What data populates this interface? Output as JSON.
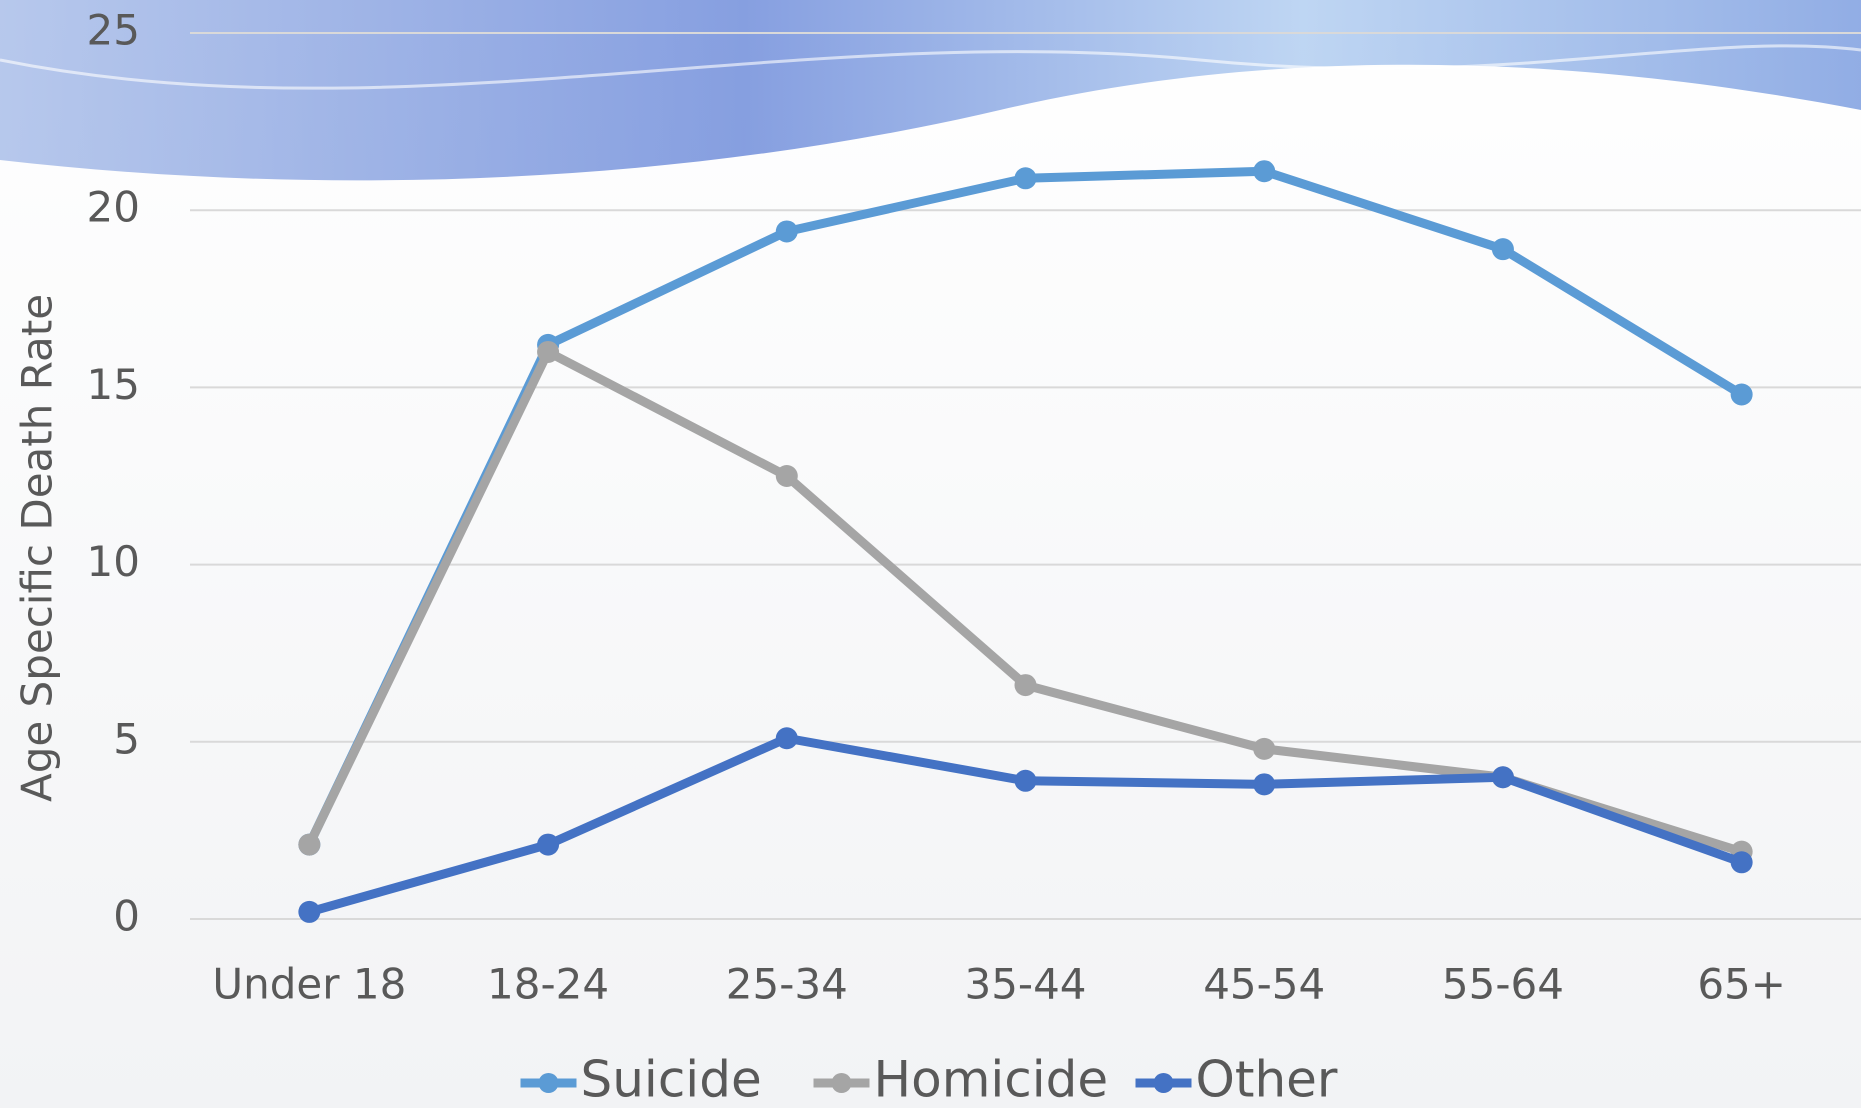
{
  "chart_data": {
    "type": "line",
    "y_label": "Age Specific Death Rate",
    "categories": [
      "Under 18",
      "18-24",
      "25-34",
      "35-44",
      "45-54",
      "55-64",
      "65+"
    ],
    "series": [
      {
        "name": "Suicide",
        "color": "#5b9bd5",
        "values": [
          2.1,
          16.2,
          19.4,
          20.9,
          21.1,
          18.9,
          14.8
        ]
      },
      {
        "name": "Homicide",
        "color": "#a5a5a5",
        "values": [
          2.1,
          16.0,
          12.5,
          6.6,
          4.8,
          4.0,
          1.9
        ]
      },
      {
        "name": "Other",
        "color": "#4472c4",
        "values": [
          0.2,
          2.1,
          5.1,
          3.9,
          3.8,
          4.0,
          1.6
        ]
      }
    ],
    "ylim": [
      0,
      25
    ],
    "yticks": [
      0,
      5,
      10,
      15,
      20,
      25
    ],
    "grid": true,
    "legend": "bottom"
  }
}
